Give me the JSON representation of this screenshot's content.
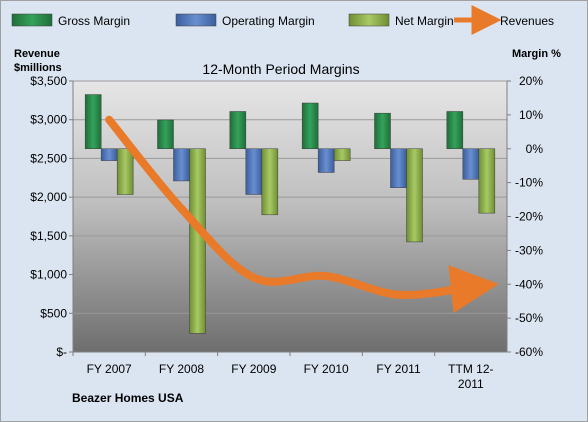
{
  "chart_data": {
    "type": "bar",
    "title": "12-Month Period Margins",
    "y_left_label": [
      "Revenue",
      "$millions"
    ],
    "y_right_label": "Margin %",
    "footer_label": "Beazer Homes USA",
    "categories": [
      "FY 2007",
      "FY 2008",
      "FY 2009",
      "FY 2010",
      "FY 2011",
      "TTM 12-2011"
    ],
    "category_label_lines": [
      [
        "FY 2007"
      ],
      [
        "FY 2008"
      ],
      [
        "FY 2009"
      ],
      [
        "FY 2010"
      ],
      [
        "FY 2011"
      ],
      [
        "TTM 12-",
        "2011"
      ]
    ],
    "y_left": {
      "min": 0,
      "max": 3500,
      "step": 500,
      "tick_labels": [
        "$-",
        "$500",
        "$1,000",
        "$1,500",
        "$2,000",
        "$2,500",
        "$3,000",
        "$3,500"
      ]
    },
    "y_right": {
      "min": -60,
      "max": 20,
      "step": 10,
      "tick_labels": [
        "-60%",
        "-50%",
        "-40%",
        "-30%",
        "-20%",
        "-10%",
        "0%",
        "10%",
        "20%"
      ]
    },
    "bar_series": [
      {
        "name": "Gross Margin",
        "axis": "right",
        "color": "#2e8b4e",
        "values": [
          16.0,
          8.5,
          11.0,
          13.5,
          10.5,
          11.0
        ]
      },
      {
        "name": "Operating Margin",
        "axis": "right",
        "color": "#4f75b8",
        "values": [
          -3.5,
          -9.5,
          -13.5,
          -7.0,
          -11.5,
          -9.0
        ]
      },
      {
        "name": "Net Margin",
        "axis": "right",
        "color": "#8fb34a",
        "values": [
          -13.5,
          -54.5,
          -19.5,
          -3.5,
          -27.5,
          -19.0
        ]
      }
    ],
    "line_series": {
      "name": "Revenues",
      "axis": "left",
      "color": "#e97a2a",
      "values": [
        3000,
        1850,
        960,
        980,
        740,
        840
      ]
    },
    "legend": {
      "placement": "top",
      "entries": [
        "Gross Margin",
        "Operating Margin",
        "Net Margin",
        "Revenues"
      ]
    }
  }
}
